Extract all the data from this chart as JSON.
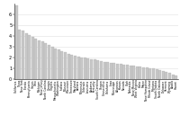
{
  "title": "",
  "values": [
    6.85,
    4.55,
    4.45,
    4.2,
    4.05,
    3.9,
    3.75,
    3.6,
    3.5,
    3.35,
    3.15,
    3.0,
    2.85,
    2.7,
    2.55,
    2.45,
    2.35,
    2.25,
    2.15,
    2.05,
    2.0,
    1.95,
    1.9,
    1.85,
    1.8,
    1.75,
    1.65,
    1.6,
    1.55,
    1.5,
    1.45,
    1.4,
    1.38,
    1.35,
    1.3,
    1.25,
    1.22,
    1.18,
    1.15,
    1.1,
    1.05,
    1.0,
    0.95,
    0.9,
    0.85,
    0.75,
    0.65,
    0.55,
    0.42,
    0.3
  ],
  "labels": [
    "California",
    "Texas",
    "New York",
    "Florida",
    "Pennsylvania",
    "Illinois",
    "Ohio",
    "Michigan",
    "New Jersey",
    "North Carolina",
    "Georgia",
    "Virginia",
    "Massachusetts",
    "Washington",
    "Indiana",
    "Missouri",
    "Wisconsin",
    "Tennessee",
    "Maryland",
    "Arizona",
    "Minnesota",
    "Colorado",
    "Louisiana",
    "Alabama",
    "Kentucky",
    "South Carolina",
    "Oregon",
    "Connecticut",
    "Oklahoma",
    "Iowa",
    "Mississippi",
    "Arkansas",
    "Kansas",
    "Nevada",
    "Utah",
    "Nebraska",
    "New Mexico",
    "West Virginia",
    "Idaho",
    "Maine",
    "New Hampshire",
    "Rhode Island",
    "Montana",
    "South Dakota",
    "North Dakota",
    "Delaware",
    "Vermont",
    "Wyoming",
    "Alaska",
    "Hawaii"
  ],
  "bar_color": "#c8c8c8",
  "bar_edge_color": "#aaaaaa",
  "ylim": [
    0,
    7
  ],
  "yticks": [
    0,
    1,
    2,
    3,
    4,
    5,
    6
  ],
  "ytick_labels": [
    "0",
    "1",
    "2",
    "3",
    "4",
    "5",
    "6"
  ],
  "grid_color": "#e0e0e0",
  "background_color": "#ffffff",
  "tick_fontsize": 3.5,
  "label_fontsize": 2.2
}
